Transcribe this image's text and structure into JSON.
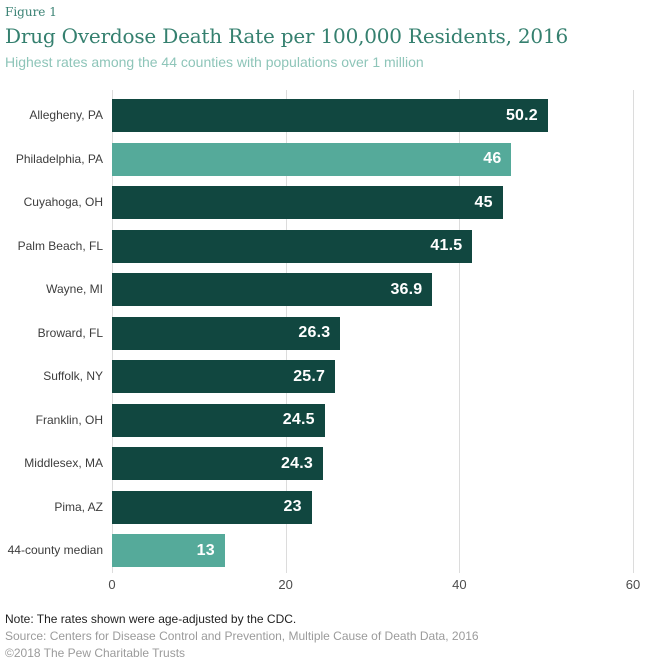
{
  "header": {
    "figure_label": "Figure 1",
    "title": "Drug Overdose Death Rate per 100,000 Residents, 2016",
    "subtitle": "Highest rates among the 44 counties with populations over 1 million"
  },
  "chart_data": {
    "type": "bar",
    "orientation": "horizontal",
    "title": "Drug Overdose Death Rate per 100,000 Residents, 2016",
    "subtitle": "Highest rates among the 44 counties with populations over 1 million",
    "categories": [
      "Allegheny, PA",
      "Philadelphia, PA",
      "Cuyahoga, OH",
      "Palm Beach, FL",
      "Wayne, MI",
      "Broward, FL",
      "Suffolk, NY",
      "Franklin, OH",
      "Middlesex, MA",
      "Pima, AZ",
      "44-county median"
    ],
    "values": [
      50.2,
      46,
      45,
      41.5,
      36.9,
      26.3,
      25.7,
      24.5,
      24.3,
      23,
      13
    ],
    "value_labels": [
      "50.2",
      "46",
      "45",
      "41.5",
      "36.9",
      "26.3",
      "25.7",
      "24.5",
      "24.3",
      "23",
      "13"
    ],
    "highlighted_indices": [
      1,
      10
    ],
    "xlim": [
      0,
      60
    ],
    "x_ticks": [
      0,
      20,
      40,
      60
    ],
    "xlabel": "",
    "ylabel": "",
    "grid": true,
    "legend": "none",
    "colors": {
      "bar": "#114740",
      "bar_highlight": "#55aa9a",
      "value_label": "#ffffff",
      "gridline": "#dcdcdc"
    }
  },
  "footer": {
    "note": "Note: The rates shown were age-adjusted by the CDC.",
    "source": "Source: Centers for Disease Control and Prevention, Multiple Cause of Death Data, 2016",
    "copyright": "©2018 The Pew Charitable Trusts"
  }
}
